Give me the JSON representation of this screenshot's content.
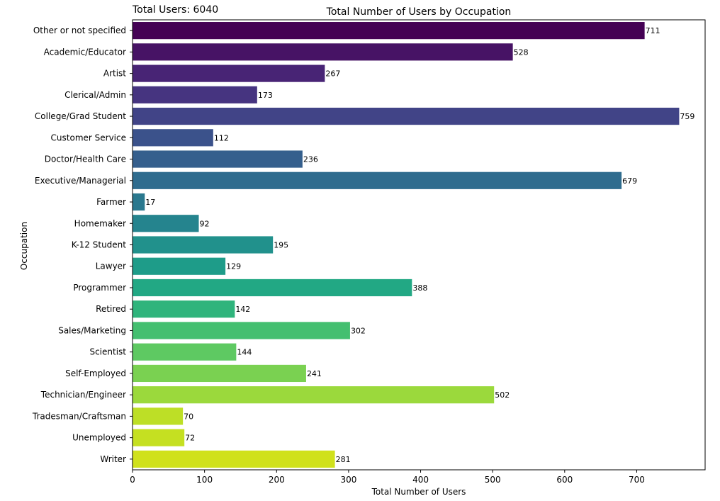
{
  "chart_data": {
    "type": "bar",
    "orientation": "horizontal",
    "title": "Total Number of Users by Occupation",
    "annotation": "Total Users: 6040",
    "xlabel": "Total Number of Users",
    "ylabel": "Occupation",
    "xlim": [
      0,
      795
    ],
    "xticks": [
      "0",
      "100",
      "200",
      "300",
      "400",
      "500",
      "600",
      "700"
    ],
    "categories": [
      "Other or not specified",
      "Academic/Educator",
      "Artist",
      "Clerical/Admin",
      "College/Grad Student",
      "Customer Service",
      "Doctor/Health Care",
      "Executive/Managerial",
      "Farmer",
      "Homemaker",
      "K-12 Student",
      "Lawyer",
      "Programmer",
      "Retired",
      "Sales/Marketing",
      "Scientist",
      "Self-Employed",
      "Technician/Engineer",
      "Tradesman/Craftsman",
      "Unemployed",
      "Writer"
    ],
    "values": [
      711,
      528,
      267,
      173,
      759,
      112,
      236,
      679,
      17,
      92,
      195,
      129,
      388,
      142,
      302,
      144,
      241,
      502,
      70,
      72,
      281
    ],
    "colors": [
      "#440154",
      "#471365",
      "#482475",
      "#463480",
      "#414487",
      "#3b528b",
      "#355f8d",
      "#2f6c8e",
      "#2a788e",
      "#25848e",
      "#21918c",
      "#1e9c89",
      "#22a884",
      "#2fb47c",
      "#44bf70",
      "#5ec962",
      "#7ad151",
      "#9bd93c",
      "#bddf26",
      "#c5e021",
      "#d0e11c"
    ],
    "grid": false
  }
}
